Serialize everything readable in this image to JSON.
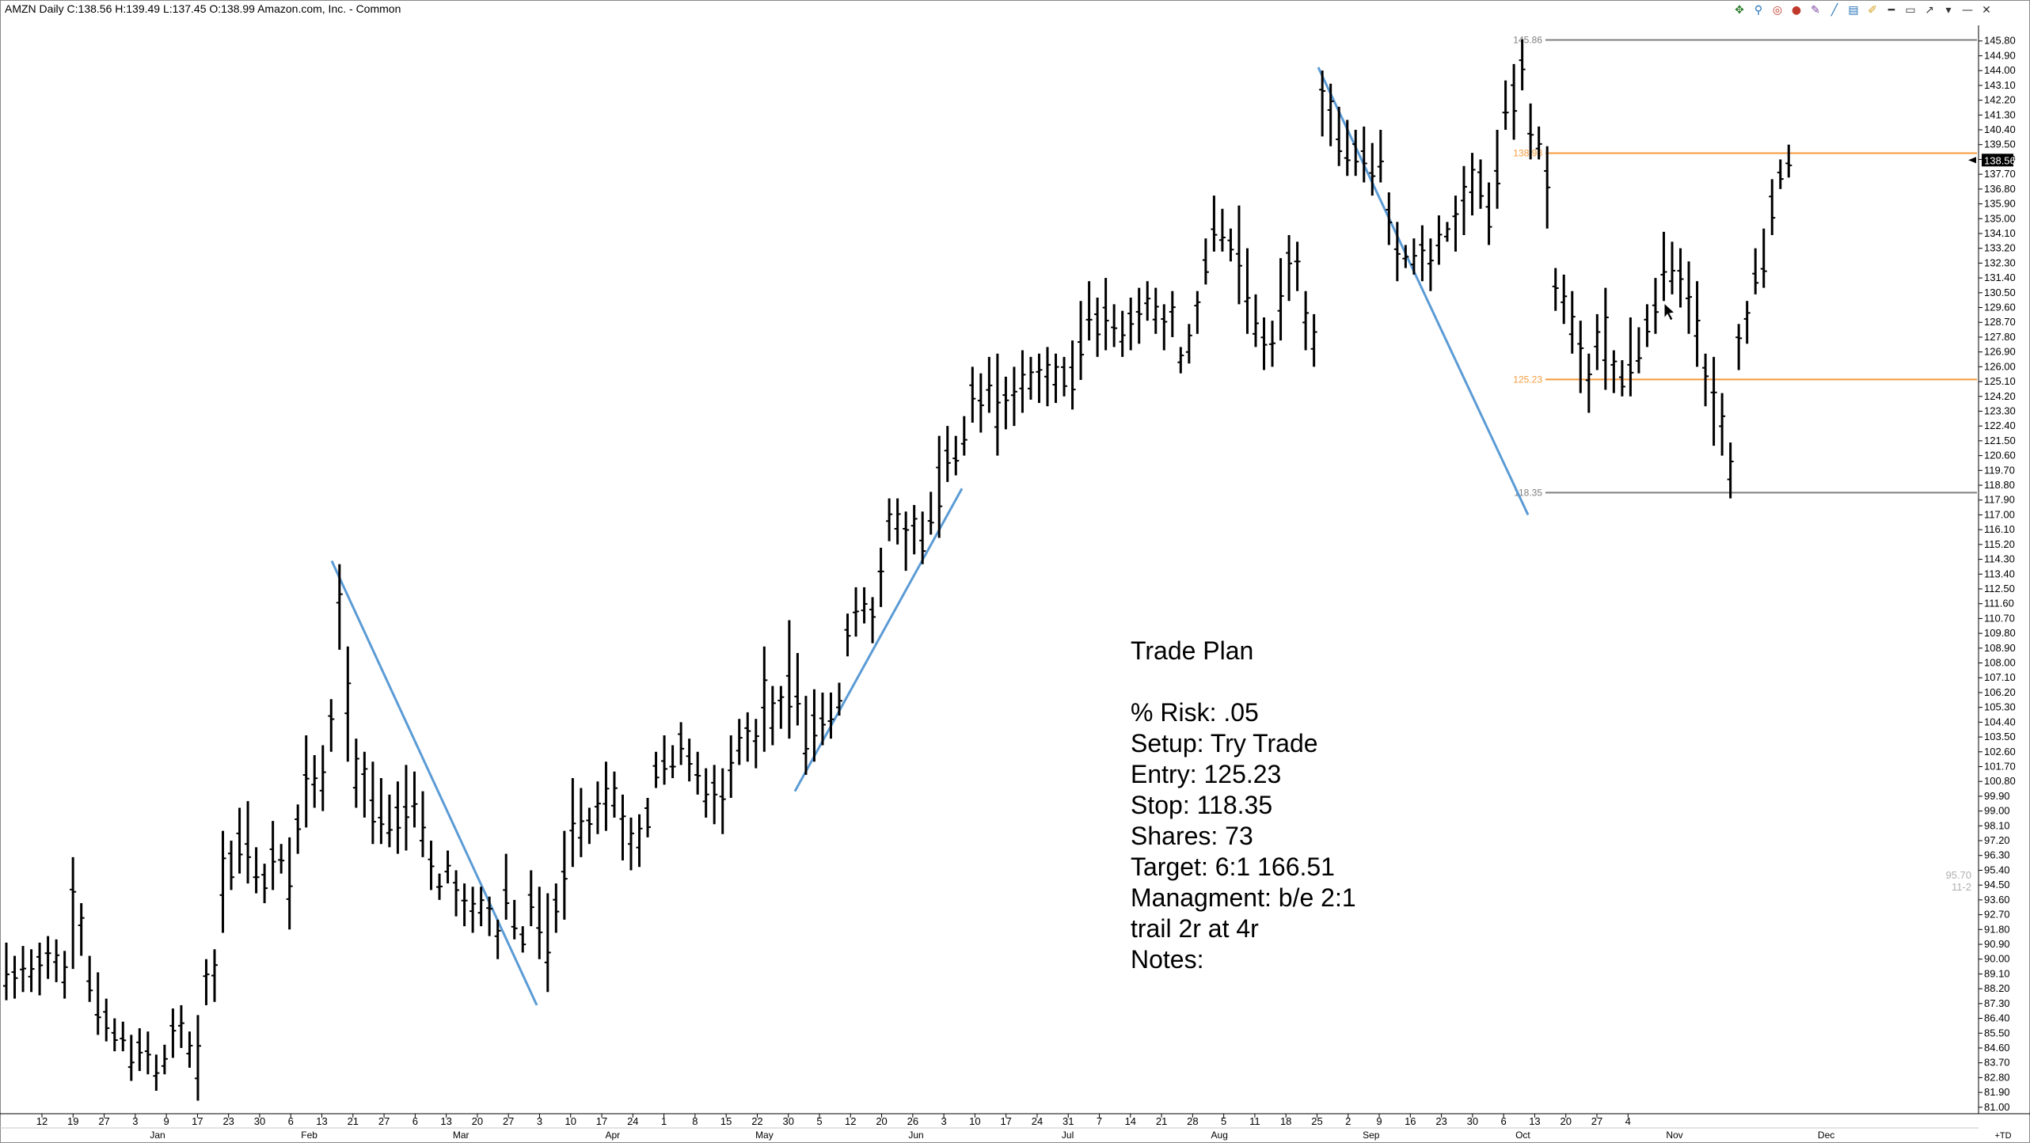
{
  "window": {
    "title": "AMZN Daily C:138.56 H:139.49 L:137.45 O:138.99 Amazon.com, Inc. - Common"
  },
  "toolbar": {
    "icons": [
      "pan-icon",
      "zoom-icon",
      "target-icon",
      "record-icon",
      "pen-icon",
      "trendline-icon",
      "fibonacci-icon",
      "highlight-icon",
      "horizontal-line-icon",
      "rectangle-icon",
      "arrow-icon",
      "dropdown-icon",
      "minimize-icon",
      "close-icon"
    ]
  },
  "chart_data": {
    "type": "ohlc-bar",
    "symbol": "AMZN",
    "timeframe": "Daily",
    "ylim": [
      80.75,
      146.75
    ],
    "price_ticks": [
      "145.80",
      "144.90",
      "144.00",
      "143.10",
      "142.20",
      "141.30",
      "140.40",
      "139.50",
      "138.60",
      "137.70",
      "136.80",
      "135.90",
      "135.00",
      "134.10",
      "133.20",
      "132.30",
      "131.40",
      "130.50",
      "129.60",
      "128.70",
      "127.80",
      "126.90",
      "126.00",
      "125.10",
      "124.20",
      "123.30",
      "122.40",
      "121.50",
      "120.60",
      "119.70",
      "118.80",
      "117.90",
      "117.00",
      "116.10",
      "115.20",
      "114.30",
      "113.40",
      "112.50",
      "111.60",
      "110.70",
      "109.80",
      "108.90",
      "108.00",
      "107.10",
      "106.20",
      "105.30",
      "104.40",
      "103.50",
      "102.60",
      "101.70",
      "100.80",
      "99.90",
      "99.00",
      "98.10",
      "97.20",
      "96.30",
      "95.40",
      "94.50",
      "93.60",
      "92.70",
      "91.80",
      "90.90",
      "90.00",
      "89.10",
      "88.20",
      "87.30",
      "86.40",
      "85.50",
      "84.60",
      "83.70",
      "82.80",
      "81.90",
      "81.00"
    ],
    "last_price_label": "138.56",
    "day_ticks": [
      "12",
      "19",
      "27",
      "3",
      "9",
      "17",
      "23",
      "30",
      "6",
      "13",
      "21",
      "27",
      "6",
      "13",
      "20",
      "27",
      "3",
      "10",
      "17",
      "24",
      "1",
      "8",
      "15",
      "22",
      "30",
      "5",
      "12",
      "20",
      "26",
      "3",
      "10",
      "17",
      "24",
      "31",
      "7",
      "14",
      "21",
      "28",
      "5",
      "11",
      "18",
      "25",
      "2",
      "9",
      "16",
      "23",
      "30",
      "6",
      "13",
      "20",
      "27",
      "4"
    ],
    "month_labels": [
      "Jan",
      "Feb",
      "Mar",
      "Apr",
      "May",
      "Jun",
      "Jul",
      "Aug",
      "Sep",
      "Oct",
      "Nov",
      "Dec"
    ],
    "horizontal_levels": [
      {
        "value": 145.86,
        "label": "145.86",
        "color": "#7f7f7f"
      },
      {
        "value": 138.98,
        "label": "138.98",
        "color": "#f59a3c"
      },
      {
        "value": 125.23,
        "label": "125.23",
        "color": "#f59a3c"
      },
      {
        "value": 118.35,
        "label": "118.35",
        "color": "#7f7f7f"
      }
    ],
    "trendline_color": "#5b9bd5",
    "bar_color": "#000000",
    "side_readout": [
      "95.70",
      "11-2"
    ],
    "corner_label": "+TD",
    "bars": [
      {
        "h": 91.0,
        "l": 87.5
      },
      {
        "h": 90.2,
        "l": 87.6
      },
      {
        "h": 90.8,
        "l": 88.0
      },
      {
        "h": 90.6,
        "l": 88.0
      },
      {
        "h": 91.0,
        "l": 87.8
      },
      {
        "h": 91.4,
        "l": 88.8
      },
      {
        "h": 91.2,
        "l": 88.6
      },
      {
        "h": 90.5,
        "l": 87.6
      },
      {
        "h": 96.2,
        "l": 89.4
      },
      {
        "h": 93.4,
        "l": 90.2
      },
      {
        "h": 90.2,
        "l": 87.4
      },
      {
        "h": 89.2,
        "l": 85.4
      },
      {
        "h": 87.6,
        "l": 85.0
      },
      {
        "h": 86.4,
        "l": 84.4
      },
      {
        "h": 86.2,
        "l": 84.4
      },
      {
        "h": 85.4,
        "l": 82.6
      },
      {
        "h": 85.8,
        "l": 83.2
      },
      {
        "h": 85.6,
        "l": 83.0
      },
      {
        "h": 84.2,
        "l": 82.0
      },
      {
        "h": 84.8,
        "l": 83.0
      },
      {
        "h": 87.0,
        "l": 84.0
      },
      {
        "h": 87.2,
        "l": 84.6
      },
      {
        "h": 85.6,
        "l": 83.4
      },
      {
        "h": 86.6,
        "l": 81.4
      },
      {
        "h": 90.0,
        "l": 87.2
      },
      {
        "h": 90.6,
        "l": 87.4
      },
      {
        "h": 97.8,
        "l": 91.6
      },
      {
        "h": 97.2,
        "l": 94.2
      },
      {
        "h": 99.2,
        "l": 95.2
      },
      {
        "h": 99.6,
        "l": 94.6
      },
      {
        "h": 96.8,
        "l": 94.0
      },
      {
        "h": 95.8,
        "l": 93.4
      },
      {
        "h": 98.4,
        "l": 94.2
      },
      {
        "h": 97.0,
        "l": 95.2
      },
      {
        "h": 97.4,
        "l": 91.8
      },
      {
        "h": 99.4,
        "l": 96.4
      },
      {
        "h": 103.6,
        "l": 98.0
      },
      {
        "h": 102.4,
        "l": 99.2
      },
      {
        "h": 103.0,
        "l": 99.0
      },
      {
        "h": 105.8,
        "l": 102.6
      },
      {
        "h": 114.0,
        "l": 108.8
      },
      {
        "h": 109.0,
        "l": 102.0
      },
      {
        "h": 103.4,
        "l": 99.2
      },
      {
        "h": 102.6,
        "l": 98.6
      },
      {
        "h": 102.0,
        "l": 97.0
      },
      {
        "h": 101.0,
        "l": 97.0
      },
      {
        "h": 100.0,
        "l": 96.8
      },
      {
        "h": 100.8,
        "l": 96.4
      },
      {
        "h": 101.8,
        "l": 96.6
      },
      {
        "h": 101.4,
        "l": 98.0
      },
      {
        "h": 100.2,
        "l": 96.2
      },
      {
        "h": 97.2,
        "l": 94.2
      },
      {
        "h": 95.2,
        "l": 93.6
      },
      {
        "h": 96.6,
        "l": 94.6
      },
      {
        "h": 95.4,
        "l": 92.6
      },
      {
        "h": 94.6,
        "l": 92.0
      },
      {
        "h": 94.4,
        "l": 91.6
      },
      {
        "h": 94.4,
        "l": 92.0
      },
      {
        "h": 93.8,
        "l": 91.4
      },
      {
        "h": 92.4,
        "l": 90.0
      },
      {
        "h": 96.4,
        "l": 92.4
      },
      {
        "h": 93.6,
        "l": 91.2
      },
      {
        "h": 92.0,
        "l": 90.4
      },
      {
        "h": 95.4,
        "l": 92.0
      },
      {
        "h": 94.4,
        "l": 90.0
      },
      {
        "h": 94.0,
        "l": 88.0
      },
      {
        "h": 94.6,
        "l": 91.6
      },
      {
        "h": 97.8,
        "l": 92.4
      },
      {
        "h": 101.0,
        "l": 95.6
      },
      {
        "h": 100.4,
        "l": 96.2
      },
      {
        "h": 99.2,
        "l": 97.0
      },
      {
        "h": 100.8,
        "l": 97.6
      },
      {
        "h": 102.0,
        "l": 97.8
      },
      {
        "h": 101.4,
        "l": 98.6
      },
      {
        "h": 100.0,
        "l": 96.0
      },
      {
        "h": 98.6,
        "l": 95.4
      },
      {
        "h": 98.8,
        "l": 95.6
      },
      {
        "h": 99.8,
        "l": 97.4
      },
      {
        "h": 102.6,
        "l": 100.4
      },
      {
        "h": 103.6,
        "l": 100.6
      },
      {
        "h": 103.0,
        "l": 101.0
      },
      {
        "h": 104.4,
        "l": 101.8
      },
      {
        "h": 103.4,
        "l": 100.8
      },
      {
        "h": 102.6,
        "l": 100.0
      },
      {
        "h": 101.6,
        "l": 98.6
      },
      {
        "h": 101.8,
        "l": 98.2
      },
      {
        "h": 101.6,
        "l": 97.6
      },
      {
        "h": 103.6,
        "l": 99.8
      },
      {
        "h": 104.6,
        "l": 101.8
      },
      {
        "h": 105.0,
        "l": 102.0
      },
      {
        "h": 104.6,
        "l": 101.6
      },
      {
        "h": 109.0,
        "l": 102.6
      },
      {
        "h": 106.6,
        "l": 103.0
      },
      {
        "h": 106.6,
        "l": 104.0
      },
      {
        "h": 110.6,
        "l": 103.4
      },
      {
        "h": 108.6,
        "l": 104.2
      },
      {
        "h": 106.0,
        "l": 101.2
      },
      {
        "h": 106.4,
        "l": 102.0
      },
      {
        "h": 106.2,
        "l": 103.0
      },
      {
        "h": 106.2,
        "l": 103.4
      },
      {
        "h": 106.8,
        "l": 104.8
      },
      {
        "h": 111.0,
        "l": 108.4
      },
      {
        "h": 112.6,
        "l": 109.6
      },
      {
        "h": 112.6,
        "l": 110.4
      },
      {
        "h": 112.0,
        "l": 109.2
      },
      {
        "h": 115.0,
        "l": 111.4
      },
      {
        "h": 118.0,
        "l": 115.4
      },
      {
        "h": 118.0,
        "l": 115.2
      },
      {
        "h": 117.2,
        "l": 113.6
      },
      {
        "h": 117.6,
        "l": 114.6
      },
      {
        "h": 117.2,
        "l": 114.0
      },
      {
        "h": 118.4,
        "l": 115.8
      },
      {
        "h": 121.8,
        "l": 115.6
      },
      {
        "h": 122.4,
        "l": 119.0
      },
      {
        "h": 121.8,
        "l": 119.4
      },
      {
        "h": 123.0,
        "l": 120.6
      },
      {
        "h": 126.0,
        "l": 122.6
      },
      {
        "h": 125.6,
        "l": 122.0
      },
      {
        "h": 126.6,
        "l": 123.2
      },
      {
        "h": 126.8,
        "l": 120.6
      },
      {
        "h": 125.4,
        "l": 122.2
      },
      {
        "h": 126.0,
        "l": 122.4
      },
      {
        "h": 127.0,
        "l": 123.2
      },
      {
        "h": 126.6,
        "l": 124.0
      },
      {
        "h": 126.8,
        "l": 123.8
      },
      {
        "h": 127.2,
        "l": 123.6
      },
      {
        "h": 126.8,
        "l": 123.8
      },
      {
        "h": 126.6,
        "l": 124.2
      },
      {
        "h": 127.6,
        "l": 123.4
      },
      {
        "h": 130.0,
        "l": 125.2
      },
      {
        "h": 131.2,
        "l": 127.6
      },
      {
        "h": 130.2,
        "l": 126.6
      },
      {
        "h": 131.4,
        "l": 127.0
      },
      {
        "h": 129.8,
        "l": 127.2
      },
      {
        "h": 129.4,
        "l": 126.6
      },
      {
        "h": 130.2,
        "l": 127.0
      },
      {
        "h": 130.8,
        "l": 127.4
      },
      {
        "h": 131.2,
        "l": 128.8
      },
      {
        "h": 130.8,
        "l": 128.0
      },
      {
        "h": 129.8,
        "l": 127.0
      },
      {
        "h": 130.6,
        "l": 127.8
      },
      {
        "h": 127.2,
        "l": 125.6
      },
      {
        "h": 128.6,
        "l": 126.2
      },
      {
        "h": 130.6,
        "l": 128.0
      },
      {
        "h": 133.8,
        "l": 131.0
      },
      {
        "h": 136.4,
        "l": 133.0
      },
      {
        "h": 135.6,
        "l": 133.0
      },
      {
        "h": 134.4,
        "l": 132.4
      },
      {
        "h": 135.8,
        "l": 129.8
      },
      {
        "h": 133.2,
        "l": 128.0
      },
      {
        "h": 130.4,
        "l": 127.2
      },
      {
        "h": 129.0,
        "l": 125.8
      },
      {
        "h": 128.8,
        "l": 126.0
      },
      {
        "h": 132.6,
        "l": 127.6
      },
      {
        "h": 134.0,
        "l": 130.0
      },
      {
        "h": 133.6,
        "l": 130.6
      },
      {
        "h": 130.6,
        "l": 127.0
      },
      {
        "h": 129.2,
        "l": 126.0
      },
      {
        "h": 144.0,
        "l": 140.0
      },
      {
        "h": 143.2,
        "l": 139.4
      },
      {
        "h": 141.8,
        "l": 138.2
      },
      {
        "h": 141.0,
        "l": 137.6
      },
      {
        "h": 140.4,
        "l": 137.6
      },
      {
        "h": 140.6,
        "l": 137.2
      },
      {
        "h": 139.6,
        "l": 136.4
      },
      {
        "h": 140.4,
        "l": 137.2
      },
      {
        "h": 136.6,
        "l": 133.4
      },
      {
        "h": 134.8,
        "l": 131.2
      },
      {
        "h": 133.4,
        "l": 132.0
      },
      {
        "h": 133.8,
        "l": 131.6
      },
      {
        "h": 134.6,
        "l": 131.2
      },
      {
        "h": 133.8,
        "l": 130.6
      },
      {
        "h": 135.2,
        "l": 132.2
      },
      {
        "h": 134.8,
        "l": 133.6
      },
      {
        "h": 136.4,
        "l": 133.0
      },
      {
        "h": 138.2,
        "l": 134.0
      },
      {
        "h": 139.0,
        "l": 135.2
      },
      {
        "h": 138.6,
        "l": 135.6
      },
      {
        "h": 137.2,
        "l": 133.4
      },
      {
        "h": 140.4,
        "l": 135.6
      },
      {
        "h": 143.4,
        "l": 140.4
      },
      {
        "h": 144.4,
        "l": 139.8
      },
      {
        "h": 145.9,
        "l": 142.8
      },
      {
        "h": 142.0,
        "l": 138.6
      },
      {
        "h": 140.6,
        "l": 138.6
      },
      {
        "h": 139.4,
        "l": 134.4
      },
      {
        "h": 132.0,
        "l": 129.4
      },
      {
        "h": 131.6,
        "l": 128.6
      },
      {
        "h": 130.6,
        "l": 126.8
      },
      {
        "h": 128.8,
        "l": 124.4
      },
      {
        "h": 126.8,
        "l": 123.2
      },
      {
        "h": 129.2,
        "l": 125.8
      },
      {
        "h": 130.8,
        "l": 124.6
      },
      {
        "h": 127.0,
        "l": 124.4
      },
      {
        "h": 126.4,
        "l": 124.2
      },
      {
        "h": 129.0,
        "l": 124.2
      },
      {
        "h": 128.4,
        "l": 125.6
      },
      {
        "h": 129.8,
        "l": 127.2
      },
      {
        "h": 131.4,
        "l": 128.0
      },
      {
        "h": 134.2,
        "l": 130.0
      },
      {
        "h": 133.6,
        "l": 130.4
      },
      {
        "h": 133.2,
        "l": 129.6
      },
      {
        "h": 132.4,
        "l": 128.0
      },
      {
        "h": 131.2,
        "l": 126.0
      },
      {
        "h": 126.8,
        "l": 123.6
      },
      {
        "h": 126.6,
        "l": 121.2
      },
      {
        "h": 124.4,
        "l": 120.6
      },
      {
        "h": 121.4,
        "l": 118.0
      },
      {
        "h": 128.6,
        "l": 125.8
      },
      {
        "h": 130.0,
        "l": 127.4
      },
      {
        "h": 133.2,
        "l": 130.4
      },
      {
        "h": 134.4,
        "l": 130.8
      },
      {
        "h": 137.4,
        "l": 134.0
      },
      {
        "h": 138.6,
        "l": 136.8
      },
      {
        "h": 139.5,
        "l": 137.5
      }
    ]
  },
  "trade_plan": {
    "title": "Trade Plan",
    "lines": [
      "% Risk: .05",
      "Setup: Try Trade",
      "Entry: 125.23",
      "Stop: 118.35",
      "Shares: 73",
      "Target: 6:1 166.51",
      "Managment: b/e 2:1",
      "trail 2r at 4r",
      "Notes:"
    ]
  }
}
